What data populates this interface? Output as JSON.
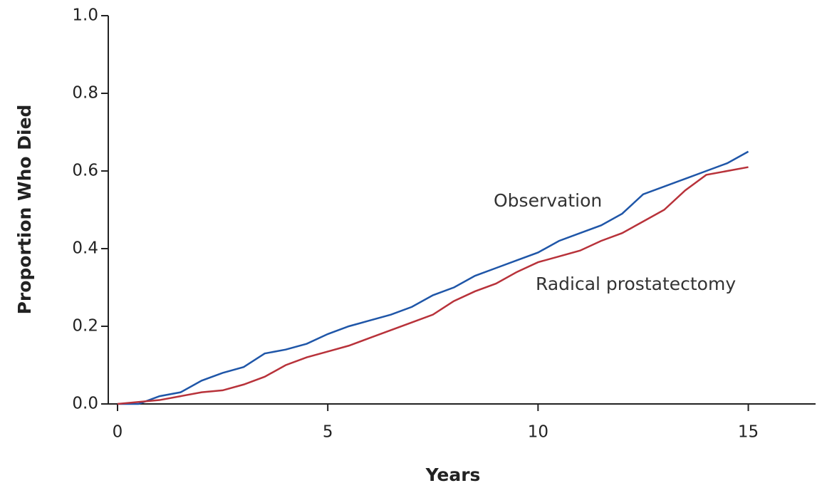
{
  "chart_data": {
    "type": "line",
    "xlabel": "Years",
    "ylabel": "Proportion Who Died",
    "x": [
      0,
      0.5,
      1,
      1.5,
      2,
      2.5,
      3,
      3.5,
      4,
      4.5,
      5,
      5.5,
      6,
      6.5,
      7,
      7.5,
      8,
      8.5,
      9,
      9.5,
      10,
      10.5,
      11,
      11.5,
      12,
      12.5,
      13,
      13.5,
      14,
      14.5,
      15
    ],
    "series": [
      {
        "name": "Observation",
        "color": "#1f56a8",
        "values": [
          0,
          0,
          0.02,
          0.03,
          0.06,
          0.08,
          0.095,
          0.13,
          0.14,
          0.155,
          0.18,
          0.2,
          0.215,
          0.23,
          0.25,
          0.28,
          0.3,
          0.33,
          0.35,
          0.37,
          0.39,
          0.42,
          0.44,
          0.46,
          0.49,
          0.54,
          0.56,
          0.58,
          0.6,
          0.62,
          0.65
        ]
      },
      {
        "name": "Radical prostatectomy",
        "color": "#b8323a",
        "values": [
          0,
          0.005,
          0.01,
          0.02,
          0.03,
          0.035,
          0.05,
          0.07,
          0.1,
          0.12,
          0.135,
          0.15,
          0.17,
          0.19,
          0.21,
          0.23,
          0.265,
          0.29,
          0.31,
          0.34,
          0.365,
          0.38,
          0.395,
          0.42,
          0.44,
          0.47,
          0.5,
          0.55,
          0.59,
          0.6,
          0.61
        ]
      }
    ],
    "xlim": [
      -0.22,
      16.6
    ],
    "ylim": [
      0,
      1.0
    ],
    "xticks": [
      0,
      5,
      10,
      15
    ],
    "yticks": [
      {
        "value": 0,
        "label": "0.0"
      },
      0.2,
      0.4,
      0.6,
      0.8,
      {
        "value": 1.0,
        "label": "1.0"
      }
    ]
  }
}
